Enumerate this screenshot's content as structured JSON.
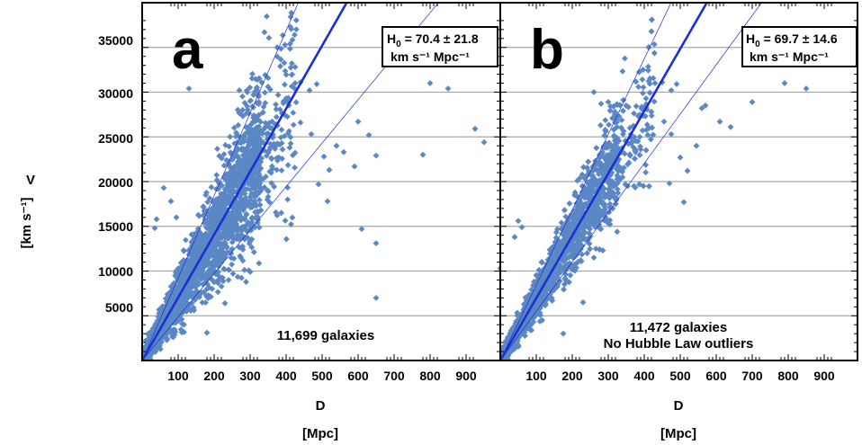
{
  "chart_data": [
    {
      "type": "scatter",
      "panel_letter": "a",
      "xlabel": "D",
      "xlabel_unit": "[Mpc]",
      "ylabel": "V",
      "ylabel_unit": "[km s⁻¹]",
      "xlim": [
        0,
        1000
      ],
      "ylim": [
        0,
        39000
      ],
      "xticks": [
        100,
        200,
        300,
        400,
        500,
        600,
        700,
        800,
        900
      ],
      "yticks": [
        5000,
        10000,
        15000,
        20000,
        25000,
        30000,
        35000
      ],
      "grid": "horizontal",
      "marker_color": "#5b88c4",
      "fit_color": "#1c2fd6",
      "h0": {
        "prefix": "H",
        "sub": "0",
        "eq": " = 70.4 ± 21.8",
        "units": "km s⁻¹ Mpc⁻¹"
      },
      "annotation": [
        "11,699 galaxies"
      ],
      "fit": {
        "slope": 70.4,
        "upper_slope": 92.2,
        "lower_slope": 48.6
      },
      "outliers": [
        [
          130,
          30400
        ],
        [
          270,
          30200
        ],
        [
          285,
          28800
        ],
        [
          300,
          29000
        ],
        [
          310,
          27400
        ],
        [
          335,
          27700
        ],
        [
          345,
          26200
        ],
        [
          360,
          26000
        ],
        [
          380,
          22700
        ],
        [
          390,
          23600
        ],
        [
          400,
          29300
        ],
        [
          425,
          31000
        ],
        [
          440,
          31100
        ],
        [
          465,
          30200
        ],
        [
          485,
          30900
        ],
        [
          440,
          26600
        ],
        [
          470,
          25300
        ],
        [
          505,
          22800
        ],
        [
          520,
          21300
        ],
        [
          540,
          24000
        ],
        [
          560,
          23300
        ],
        [
          590,
          21700
        ],
        [
          600,
          26700
        ],
        [
          630,
          25200
        ],
        [
          650,
          22900
        ],
        [
          610,
          14700
        ],
        [
          650,
          13100
        ],
        [
          650,
          7000
        ],
        [
          780,
          23000
        ],
        [
          800,
          31000
        ],
        [
          850,
          30400
        ],
        [
          925,
          25900
        ],
        [
          950,
          24400
        ],
        [
          995,
          10300
        ],
        [
          490,
          19700
        ],
        [
          515,
          17800
        ],
        [
          350,
          18300
        ],
        [
          330,
          16800
        ],
        [
          60,
          19300
        ],
        [
          80,
          17800
        ],
        [
          40,
          15800
        ],
        [
          35,
          14800
        ],
        [
          95,
          16000
        ],
        [
          180,
          3100
        ],
        [
          230,
          6400
        ],
        [
          255,
          11400
        ],
        [
          280,
          12400
        ]
      ]
    },
    {
      "type": "scatter",
      "panel_letter": "b",
      "xlabel": "D",
      "xlabel_unit": "[Mpc]",
      "xlim": [
        0,
        1000
      ],
      "ylim": [
        0,
        39000
      ],
      "xticks": [
        100,
        200,
        300,
        400,
        500,
        600,
        700,
        800,
        900
      ],
      "yticks": [
        5000,
        10000,
        15000,
        20000,
        25000,
        30000,
        35000
      ],
      "grid": "horizontal",
      "marker_color": "#5b88c4",
      "fit_color": "#1c2fd6",
      "h0": {
        "prefix": "H",
        "sub": "0",
        "eq": " = 69.7 ± 14.6",
        "units": "km s⁻¹ Mpc⁻¹"
      },
      "annotation": [
        "11,472 galaxies",
        "No Hubble Law outliers"
      ],
      "fit": {
        "slope": 69.7,
        "upper_slope": 84.3,
        "lower_slope": 55.1
      },
      "outliers": [
        [
          260,
          30000
        ],
        [
          280,
          28700
        ],
        [
          300,
          28900
        ],
        [
          330,
          27300
        ],
        [
          360,
          26000
        ],
        [
          390,
          23600
        ],
        [
          405,
          29300
        ],
        [
          430,
          31000
        ],
        [
          450,
          31100
        ],
        [
          475,
          30200
        ],
        [
          490,
          30900
        ],
        [
          455,
          26700
        ],
        [
          475,
          25300
        ],
        [
          500,
          22700
        ],
        [
          520,
          21200
        ],
        [
          545,
          24000
        ],
        [
          560,
          28200
        ],
        [
          570,
          28500
        ],
        [
          610,
          26700
        ],
        [
          640,
          26100
        ],
        [
          700,
          28900
        ],
        [
          790,
          31000
        ],
        [
          850,
          30400
        ],
        [
          470,
          19800
        ],
        [
          510,
          17700
        ],
        [
          260,
          11500
        ],
        [
          285,
          12300
        ],
        [
          230,
          6500
        ],
        [
          175,
          3000
        ],
        [
          50,
          15600
        ],
        [
          60,
          14900
        ],
        [
          40,
          13800
        ]
      ]
    }
  ]
}
